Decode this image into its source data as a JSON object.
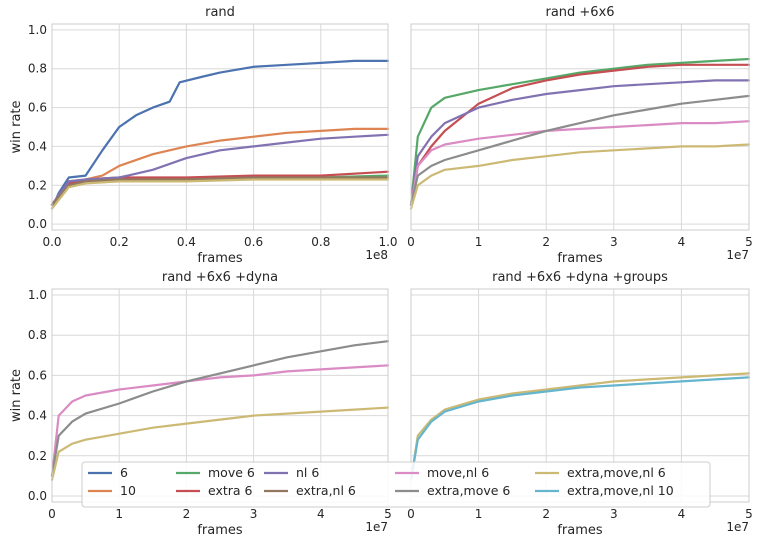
{
  "chart_data": [
    {
      "type": "line",
      "title": "rand",
      "xlabel": "frames",
      "ylabel": "win rate",
      "xlim": [
        0,
        1.0
      ],
      "ylim": [
        -0.03,
        1.03
      ],
      "x_ticks": [
        "0.0",
        "0.2",
        "0.4",
        "0.6",
        "0.8",
        "1.0"
      ],
      "y_ticks": [
        "0.0",
        "0.2",
        "0.4",
        "0.6",
        "0.8",
        "1.0"
      ],
      "x_scale_label": "1e8",
      "series": [
        {
          "name": "6",
          "color": "#4c72b0",
          "x": [
            0,
            0.02,
            0.05,
            0.1,
            0.15,
            0.2,
            0.25,
            0.3,
            0.35,
            0.38,
            0.45,
            0.5,
            0.6,
            0.7,
            0.8,
            0.9,
            1.0
          ],
          "values": [
            0.08,
            0.16,
            0.24,
            0.25,
            0.38,
            0.5,
            0.56,
            0.6,
            0.63,
            0.73,
            0.76,
            0.78,
            0.81,
            0.82,
            0.83,
            0.84,
            0.84
          ]
        },
        {
          "name": "10",
          "color": "#dd8452",
          "x": [
            0,
            0.05,
            0.1,
            0.15,
            0.2,
            0.3,
            0.4,
            0.5,
            0.6,
            0.7,
            0.8,
            0.9,
            1.0
          ],
          "values": [
            0.1,
            0.22,
            0.23,
            0.25,
            0.3,
            0.36,
            0.4,
            0.43,
            0.45,
            0.47,
            0.48,
            0.49,
            0.49
          ]
        },
        {
          "name": "move 6",
          "color": "#55a868",
          "x": [
            0,
            0.05,
            0.1,
            0.2,
            0.4,
            0.6,
            0.8,
            1.0
          ],
          "values": [
            0.1,
            0.2,
            0.22,
            0.23,
            0.23,
            0.24,
            0.24,
            0.25
          ]
        },
        {
          "name": "extra 6",
          "color": "#c44e52",
          "x": [
            0,
            0.05,
            0.1,
            0.2,
            0.4,
            0.6,
            0.8,
            1.0
          ],
          "values": [
            0.1,
            0.21,
            0.23,
            0.24,
            0.24,
            0.25,
            0.25,
            0.27
          ]
        },
        {
          "name": "nl 6",
          "color": "#8172b2",
          "x": [
            0,
            0.05,
            0.1,
            0.2,
            0.3,
            0.4,
            0.5,
            0.6,
            0.7,
            0.8,
            0.9,
            1.0
          ],
          "values": [
            0.1,
            0.22,
            0.23,
            0.24,
            0.28,
            0.34,
            0.38,
            0.4,
            0.42,
            0.44,
            0.45,
            0.46
          ]
        },
        {
          "name": "extra,nl 6",
          "color": "#937860",
          "x": [
            0,
            0.05,
            0.1,
            0.2,
            0.4,
            0.6,
            0.8,
            1.0
          ],
          "values": [
            0.1,
            0.2,
            0.22,
            0.23,
            0.23,
            0.24,
            0.24,
            0.24
          ]
        },
        {
          "name": "extra,move,nl 6",
          "color": "#ccb974",
          "x": [
            0,
            0.05,
            0.1,
            0.2,
            0.4,
            0.6,
            0.8,
            1.0
          ],
          "values": [
            0.08,
            0.19,
            0.21,
            0.22,
            0.22,
            0.23,
            0.23,
            0.23
          ]
        }
      ]
    },
    {
      "type": "line",
      "title": "rand +6x6",
      "xlabel": "frames",
      "ylabel": "",
      "xlim": [
        0,
        5
      ],
      "ylim": [
        -0.03,
        1.03
      ],
      "x_ticks": [
        "0",
        "1",
        "2",
        "3",
        "4",
        "5"
      ],
      "x_scale_label": "1e7",
      "series": [
        {
          "name": "move 6",
          "color": "#55a868",
          "x": [
            0,
            0.1,
            0.3,
            0.5,
            1,
            1.5,
            2,
            2.5,
            3,
            3.5,
            4,
            4.5,
            5
          ],
          "values": [
            0.1,
            0.45,
            0.6,
            0.65,
            0.69,
            0.72,
            0.75,
            0.78,
            0.8,
            0.82,
            0.83,
            0.84,
            0.85
          ]
        },
        {
          "name": "extra 6",
          "color": "#c44e52",
          "x": [
            0,
            0.1,
            0.3,
            0.5,
            1,
            1.5,
            2,
            2.5,
            3,
            3.5,
            4,
            4.5,
            5
          ],
          "values": [
            0.1,
            0.3,
            0.4,
            0.48,
            0.62,
            0.7,
            0.74,
            0.77,
            0.79,
            0.81,
            0.82,
            0.82,
            0.82
          ]
        },
        {
          "name": "nl 6",
          "color": "#8172b2",
          "x": [
            0,
            0.1,
            0.3,
            0.5,
            1,
            1.5,
            2,
            2.5,
            3,
            3.5,
            4,
            4.5,
            5
          ],
          "values": [
            0.1,
            0.35,
            0.45,
            0.52,
            0.6,
            0.64,
            0.67,
            0.69,
            0.71,
            0.72,
            0.73,
            0.74,
            0.74
          ]
        },
        {
          "name": "move,nl 6",
          "color": "#da8bc3",
          "x": [
            0,
            0.1,
            0.3,
            0.5,
            1,
            1.5,
            2,
            2.5,
            3,
            3.5,
            4,
            4.5,
            5
          ],
          "values": [
            0.1,
            0.3,
            0.38,
            0.41,
            0.44,
            0.46,
            0.48,
            0.49,
            0.5,
            0.51,
            0.52,
            0.52,
            0.53
          ]
        },
        {
          "name": "extra,move 6",
          "color": "#8c8c8c",
          "x": [
            0,
            0.1,
            0.3,
            0.5,
            1,
            1.5,
            2,
            2.5,
            3,
            3.5,
            4,
            4.5,
            5
          ],
          "values": [
            0.1,
            0.25,
            0.3,
            0.33,
            0.38,
            0.43,
            0.48,
            0.52,
            0.56,
            0.59,
            0.62,
            0.64,
            0.66
          ]
        },
        {
          "name": "extra,move,nl 6",
          "color": "#ccb974",
          "x": [
            0,
            0.1,
            0.3,
            0.5,
            1,
            1.5,
            2,
            2.5,
            3,
            3.5,
            4,
            4.5,
            5
          ],
          "values": [
            0.08,
            0.2,
            0.25,
            0.28,
            0.3,
            0.33,
            0.35,
            0.37,
            0.38,
            0.39,
            0.4,
            0.4,
            0.41
          ]
        }
      ]
    },
    {
      "type": "line",
      "title": "rand +6x6 +dyna",
      "xlabel": "frames",
      "ylabel": "win rate",
      "xlim": [
        0,
        5
      ],
      "ylim": [
        -0.03,
        1.03
      ],
      "x_ticks": [
        "0",
        "1",
        "2",
        "3",
        "4",
        "5"
      ],
      "y_ticks": [
        "0.0",
        "0.2",
        "0.4",
        "0.6",
        "0.8",
        "1.0"
      ],
      "x_scale_label": "1e7",
      "series": [
        {
          "name": "move,nl 6",
          "color": "#da8bc3",
          "x": [
            0,
            0.1,
            0.3,
            0.5,
            1,
            1.5,
            2,
            2.5,
            3,
            3.5,
            4,
            4.5,
            5
          ],
          "values": [
            0.1,
            0.4,
            0.47,
            0.5,
            0.53,
            0.55,
            0.57,
            0.59,
            0.6,
            0.62,
            0.63,
            0.64,
            0.65
          ]
        },
        {
          "name": "extra,move 6",
          "color": "#8c8c8c",
          "x": [
            0,
            0.1,
            0.3,
            0.5,
            1,
            1.5,
            2,
            2.5,
            3,
            3.5,
            4,
            4.5,
            5
          ],
          "values": [
            0.1,
            0.3,
            0.37,
            0.41,
            0.46,
            0.52,
            0.57,
            0.61,
            0.65,
            0.69,
            0.72,
            0.75,
            0.77
          ]
        },
        {
          "name": "extra,move,nl 6",
          "color": "#ccb974",
          "x": [
            0,
            0.1,
            0.3,
            0.5,
            1,
            1.5,
            2,
            2.5,
            3,
            3.5,
            4,
            4.5,
            5
          ],
          "values": [
            0.08,
            0.22,
            0.26,
            0.28,
            0.31,
            0.34,
            0.36,
            0.38,
            0.4,
            0.41,
            0.42,
            0.43,
            0.44
          ]
        }
      ]
    },
    {
      "type": "line",
      "title": "rand +6x6 +dyna +groups",
      "xlabel": "frames",
      "ylabel": "",
      "xlim": [
        0,
        5
      ],
      "ylim": [
        -0.03,
        1.03
      ],
      "x_ticks": [
        "0",
        "1",
        "2",
        "3",
        "4",
        "5"
      ],
      "x_scale_label": "1e7",
      "series": [
        {
          "name": "extra,move,nl 6",
          "color": "#ccb974",
          "x": [
            0,
            0.1,
            0.3,
            0.5,
            1,
            1.5,
            2,
            2.5,
            3,
            3.5,
            4,
            4.5,
            5
          ],
          "values": [
            0.08,
            0.3,
            0.38,
            0.43,
            0.48,
            0.51,
            0.53,
            0.55,
            0.57,
            0.58,
            0.59,
            0.6,
            0.61
          ]
        },
        {
          "name": "extra,move,nl 10",
          "color": "#64b5cd",
          "x": [
            0,
            0.1,
            0.3,
            0.5,
            1,
            1.5,
            2,
            2.5,
            3,
            3.5,
            4,
            4.5,
            5
          ],
          "values": [
            0.08,
            0.28,
            0.37,
            0.42,
            0.47,
            0.5,
            0.52,
            0.54,
            0.55,
            0.56,
            0.57,
            0.58,
            0.59
          ]
        }
      ]
    }
  ],
  "legend": {
    "placement": "bottom-center",
    "entries": [
      {
        "label": "6",
        "color": "#4c72b0"
      },
      {
        "label": "10",
        "color": "#dd8452"
      },
      {
        "label": "move 6",
        "color": "#55a868"
      },
      {
        "label": "extra 6",
        "color": "#c44e52"
      },
      {
        "label": "nl 6",
        "color": "#8172b2"
      },
      {
        "label": "extra,nl 6",
        "color": "#937860"
      },
      {
        "label": "move,nl 6",
        "color": "#da8bc3"
      },
      {
        "label": "extra,move 6",
        "color": "#8c8c8c"
      },
      {
        "label": "extra,move,nl 6",
        "color": "#ccb974"
      },
      {
        "label": "extra,move,nl 10",
        "color": "#64b5cd"
      }
    ]
  }
}
